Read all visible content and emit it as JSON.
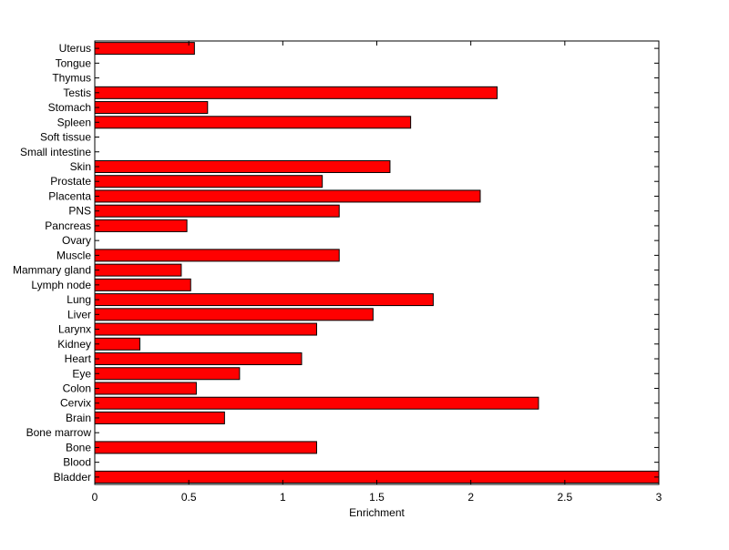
{
  "chart_data": {
    "type": "bar",
    "orientation": "horizontal",
    "title": "",
    "xlabel": "Enrichment",
    "ylabel": "",
    "xlim": [
      0,
      3
    ],
    "xticks": [
      0,
      0.5,
      1,
      1.5,
      2,
      2.5,
      3
    ],
    "xtick_labels": [
      "0",
      "0.5",
      "1",
      "1.5",
      "2",
      "2.5",
      "3"
    ],
    "grid": false,
    "legend": "none",
    "bar_color": "#ff0000",
    "bar_edge_color": "#000000",
    "categories": [
      "Uterus",
      "Tongue",
      "Thymus",
      "Testis",
      "Stomach",
      "Spleen",
      "Soft tissue",
      "Small intestine",
      "Skin",
      "Prostate",
      "Placenta",
      "PNS",
      "Pancreas",
      "Ovary",
      "Muscle",
      "Mammary gland",
      "Lymph node",
      "Lung",
      "Liver",
      "Larynx",
      "Kidney",
      "Heart",
      "Eye",
      "Colon",
      "Cervix",
      "Brain",
      "Bone marrow",
      "Bone",
      "Blood",
      "Bladder"
    ],
    "values": [
      0.53,
      0,
      0,
      2.14,
      0.6,
      1.68,
      0,
      0,
      1.57,
      1.21,
      2.05,
      1.3,
      0.49,
      0,
      1.3,
      0.46,
      0.51,
      1.8,
      1.48,
      1.18,
      0.24,
      1.1,
      0.77,
      0.54,
      2.36,
      0.69,
      0,
      1.18,
      0,
      3.0
    ]
  }
}
